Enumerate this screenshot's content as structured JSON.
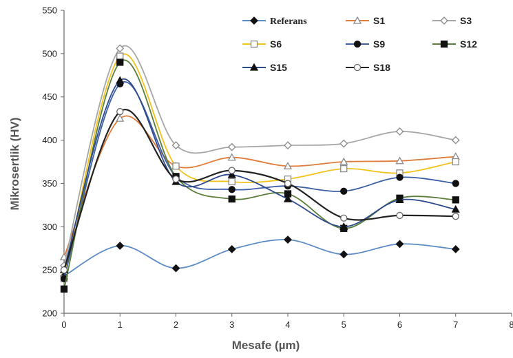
{
  "chart_data": {
    "type": "line",
    "xlabel": "Mesafe (µm)",
    "ylabel": "Mikrosertlik (HV)",
    "x": [
      0,
      1,
      2,
      3,
      4,
      5,
      6,
      7
    ],
    "xlim": [
      0,
      8
    ],
    "ylim": [
      200,
      550
    ],
    "x_ticks": [
      "0",
      "1",
      "2",
      "3",
      "4",
      "5",
      "6",
      "7",
      "8"
    ],
    "y_ticks": [
      "200",
      "250",
      "300",
      "350",
      "400",
      "450",
      "500",
      "550"
    ],
    "grid": false,
    "legend_position": "top-right",
    "series": [
      {
        "name": "Referans",
        "color": "#5b8bc4",
        "marker": "diamond-filled",
        "marker_color": "#111111",
        "values": [
          243,
          278,
          252,
          274,
          285,
          268,
          280,
          274
        ]
      },
      {
        "name": "S1",
        "color": "#e07b39",
        "marker": "triangle-open",
        "marker_color": "#888888",
        "values": [
          265,
          425,
          370,
          380,
          370,
          375,
          376,
          381
        ]
      },
      {
        "name": "S3",
        "color": "#a6a6a6",
        "marker": "diamond-open",
        "marker_color": "#888888",
        "values": [
          255,
          506,
          394,
          392,
          394,
          396,
          410,
          400
        ]
      },
      {
        "name": "S6",
        "color": "#f2c21b",
        "marker": "square-open",
        "marker_color": "#888888",
        "values": [
          240,
          497,
          370,
          352,
          355,
          367,
          362,
          375
        ]
      },
      {
        "name": "S9",
        "color": "#3d5fa6",
        "marker": "circle-filled",
        "marker_color": "#111111",
        "values": [
          240,
          465,
          358,
          343,
          347,
          341,
          357,
          350
        ]
      },
      {
        "name": "S12",
        "color": "#5a7d3a",
        "marker": "square-filled",
        "marker_color": "#111111",
        "values": [
          228,
          490,
          358,
          332,
          338,
          298,
          333,
          331
        ]
      },
      {
        "name": "S15",
        "color": "#2c4a8c",
        "marker": "triangle-filled",
        "marker_color": "#111111",
        "values": [
          250,
          469,
          352,
          360,
          332,
          300,
          331,
          320
        ]
      },
      {
        "name": "S18",
        "color": "#222222",
        "marker": "circle-open",
        "marker_color": "#666666",
        "values": [
          250,
          433,
          355,
          365,
          350,
          310,
          313,
          312
        ]
      }
    ]
  }
}
